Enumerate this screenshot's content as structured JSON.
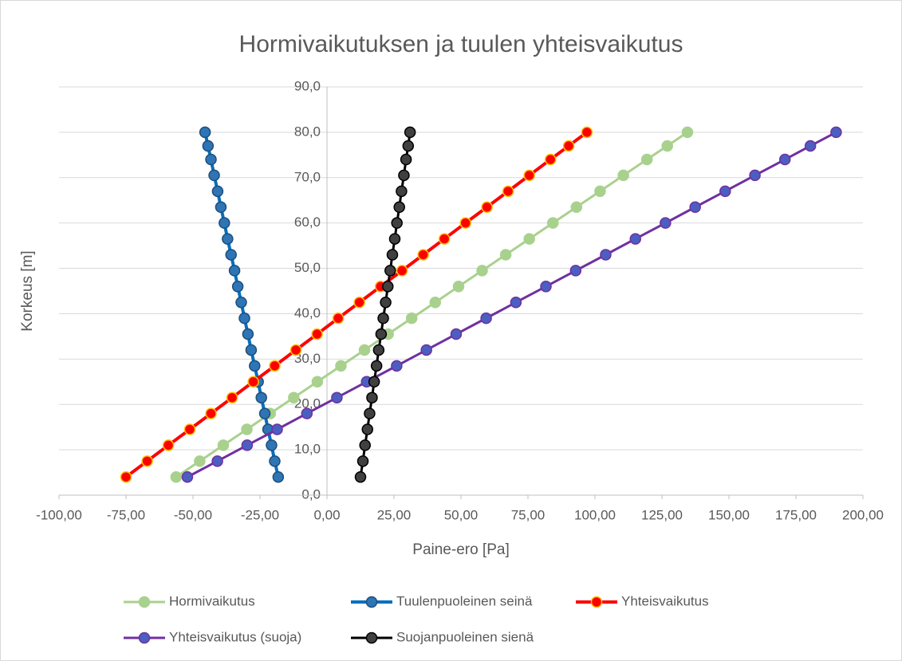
{
  "chart_data": {
    "type": "line",
    "title": "Hormivaikutuksen ja tuulen yhteisvaikutus",
    "xlabel": "Paine-ero [Pa]",
    "ylabel": "Korkeus [m]",
    "xlim": [
      -100,
      200
    ],
    "ylim": [
      0,
      90
    ],
    "xticks": [
      {
        "value": -100,
        "label": "-100,00"
      },
      {
        "value": -75,
        "label": "-75,00"
      },
      {
        "value": -50,
        "label": "-50,00"
      },
      {
        "value": -25,
        "label": "-25,00"
      },
      {
        "value": 0,
        "label": "0,00"
      },
      {
        "value": 25,
        "label": "25,00"
      },
      {
        "value": 50,
        "label": "50,00"
      },
      {
        "value": 75,
        "label": "75,00"
      },
      {
        "value": 100,
        "label": "100,00"
      },
      {
        "value": 125,
        "label": "125,00"
      },
      {
        "value": 150,
        "label": "150,00"
      },
      {
        "value": 175,
        "label": "175,00"
      },
      {
        "value": 200,
        "label": "200,00"
      }
    ],
    "yticks": [
      {
        "value": 0,
        "label": "0,0"
      },
      {
        "value": 10,
        "label": "10,0"
      },
      {
        "value": 20,
        "label": "20,0"
      },
      {
        "value": 30,
        "label": "30,0"
      },
      {
        "value": 40,
        "label": "40,0"
      },
      {
        "value": 50,
        "label": "50,0"
      },
      {
        "value": 60,
        "label": "60,0"
      },
      {
        "value": 70,
        "label": "70,0"
      },
      {
        "value": 80,
        "label": "80,0"
      },
      {
        "value": 90,
        "label": "90,0"
      }
    ],
    "grid": true,
    "legend": "bottom",
    "y": [
      4,
      7.5,
      11,
      14.5,
      18,
      21.5,
      25,
      28.5,
      32,
      35.5,
      39,
      42.5,
      46,
      49.5,
      53,
      56.5,
      60,
      63.5,
      67,
      70.5,
      74,
      77,
      80
    ],
    "series": [
      {
        "name": "Hormivaikutus",
        "color": "#a9d18e",
        "marker_fill": "#a9d18e",
        "marker_edge": "#a9d18e",
        "x": [
          -56.3,
          -47.5,
          -38.7,
          -29.9,
          -21.2,
          -12.4,
          -3.6,
          5.2,
          14.0,
          22.8,
          31.6,
          40.4,
          49.1,
          57.9,
          66.7,
          75.5,
          84.3,
          93.1,
          101.9,
          110.6,
          119.4,
          127.0,
          134.5
        ]
      },
      {
        "name": "Tuulenpuoleinen seinä",
        "color": "#0070c0",
        "marker_fill": "#2e75b6",
        "marker_edge": "#1f4e79",
        "x": [
          -18.2,
          -19.5,
          -20.7,
          -22.0,
          -23.2,
          -24.5,
          -25.7,
          -27.0,
          -28.3,
          -29.5,
          -30.8,
          -32.0,
          -33.3,
          -34.5,
          -35.8,
          -37.1,
          -38.3,
          -39.6,
          -40.8,
          -42.1,
          -43.3,
          -44.4,
          -45.5
        ]
      },
      {
        "name": "Yhteisvaikutus",
        "color": "#ff0000",
        "marker_fill": "#ff0000",
        "marker_edge": "#ffc000",
        "x": [
          -75,
          -67.1,
          -59.2,
          -51.2,
          -43.3,
          -35.4,
          -27.5,
          -19.5,
          -11.6,
          -3.7,
          4.2,
          12.1,
          20.0,
          28.0,
          35.9,
          43.8,
          51.7,
          59.7,
          67.6,
          75.5,
          83.4,
          90.2,
          97
        ]
      },
      {
        "name": "Yhteisvaikutus (suoja)",
        "color": "#7030a0",
        "marker_fill": "#4a5fc1",
        "marker_edge": "#7030a0",
        "x": [
          -52.1,
          -40.9,
          -29.8,
          -18.6,
          -7.5,
          3.7,
          14.8,
          26.0,
          37.1,
          48.2,
          59.4,
          70.5,
          81.7,
          92.8,
          104.0,
          115.1,
          126.3,
          137.4,
          148.6,
          159.7,
          170.9,
          180.4,
          190
        ]
      },
      {
        "name": "Suojanpuoleinen sienä",
        "color": "#000000",
        "marker_fill": "#404040",
        "marker_edge": "#000000",
        "x": [
          12.5,
          13.4,
          14.2,
          15.1,
          15.9,
          16.8,
          17.6,
          18.5,
          19.3,
          20.2,
          21.0,
          21.9,
          22.7,
          23.6,
          24.4,
          25.3,
          26.1,
          27.0,
          27.8,
          28.7,
          29.5,
          30.3,
          31
        ]
      }
    ]
  }
}
